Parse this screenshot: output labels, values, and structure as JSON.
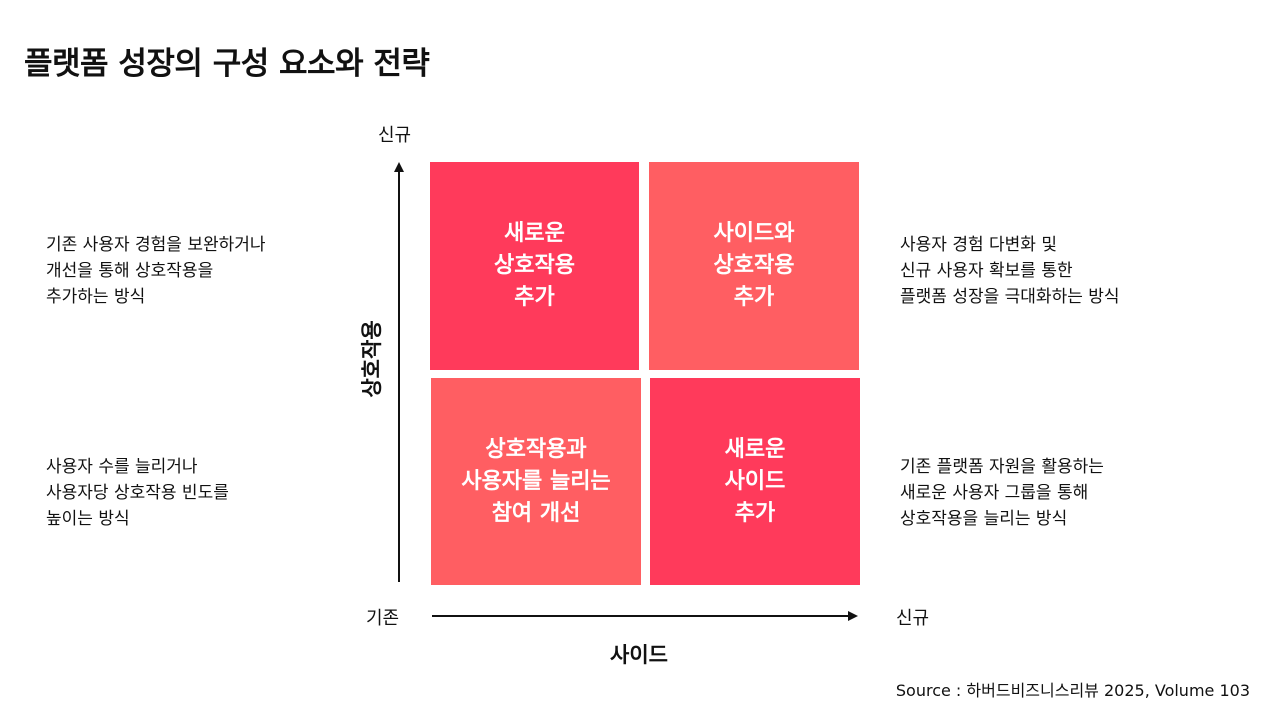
{
  "title": "플랫폼 성장의 구성 요소와 전략",
  "colors": {
    "quad_strong": "#ff3a5b",
    "quad_light": "#ff5e62",
    "axis": "#111111"
  },
  "axes": {
    "y_top_label": "신규",
    "y_title": "상호작용",
    "x_origin_label": "기존",
    "x_right_label": "신규",
    "x_title": "사이드"
  },
  "quadrants": {
    "top_left": "새로운\n상호작용\n추가",
    "top_right": "사이드와\n상호작용\n추가",
    "bottom_left": "상호작용과\n사용자를 늘리는\n참여 개선",
    "bottom_right": "새로운\n사이드\n추가"
  },
  "descriptions": {
    "top_left": "기존 사용자 경험을 보완하거나\n개선을 통해 상호작용을\n추가하는 방식",
    "top_right": "사용자 경험 다변화 및\n신규 사용자 확보를 통한\n플랫폼 성장을 극대화하는 방식",
    "bottom_left": "사용자 수를 늘리거나\n사용자당 상호작용 빈도를\n높이는 방식",
    "bottom_right": "기존 플랫폼 자원을 활용하는\n새로운 사용자 그룹을 통해\n상호작용을 늘리는 방식"
  },
  "source": "Source : 하버드비즈니스리뷰 2025, Volume 103"
}
